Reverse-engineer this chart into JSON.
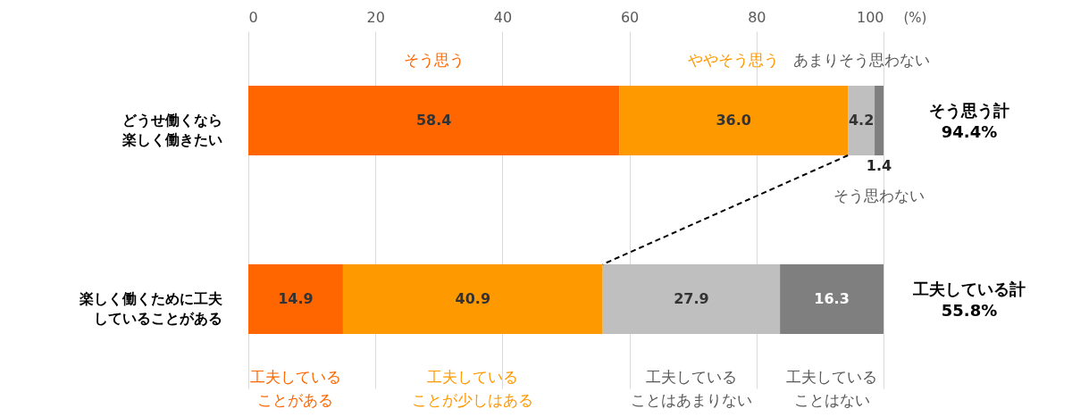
{
  "chart_data": {
    "type": "bar",
    "orientation": "horizontal",
    "stacked": true,
    "categories": [
      "どうせ働くなら楽しく働きたい",
      "楽しく働くために工夫していることがある"
    ],
    "series": [
      {
        "color": "#ff6600",
        "values": [
          58.4,
          14.9
        ],
        "value_labels": [
          "58.4",
          "14.9"
        ]
      },
      {
        "color": "#ff9900",
        "values": [
          36.0,
          40.9
        ],
        "value_labels": [
          "36.0",
          "40.9"
        ]
      },
      {
        "color": "#bfbfbf",
        "values": [
          4.2,
          27.9
        ],
        "value_labels": [
          "4.2",
          "27.9"
        ]
      },
      {
        "color": "#7f7f7f",
        "values": [
          1.4,
          16.3
        ],
        "value_labels": [
          "1.4",
          "16.3"
        ]
      }
    ],
    "xlim": [
      0,
      100
    ],
    "xticks": [
      0,
      20,
      40,
      60,
      80,
      100
    ],
    "xlabel": "(%)",
    "grid": "x",
    "totals": [
      "そう思う計\n94.4%",
      "工夫している計\n55.8%"
    ],
    "annotations": [
      "そう思う",
      "ややそう思う",
      "あまりそう思わない",
      "そう思わない",
      "工夫していることがある",
      "工夫していることが少しはある",
      "工夫していることはあまりない",
      "工夫していることはない"
    ]
  }
}
